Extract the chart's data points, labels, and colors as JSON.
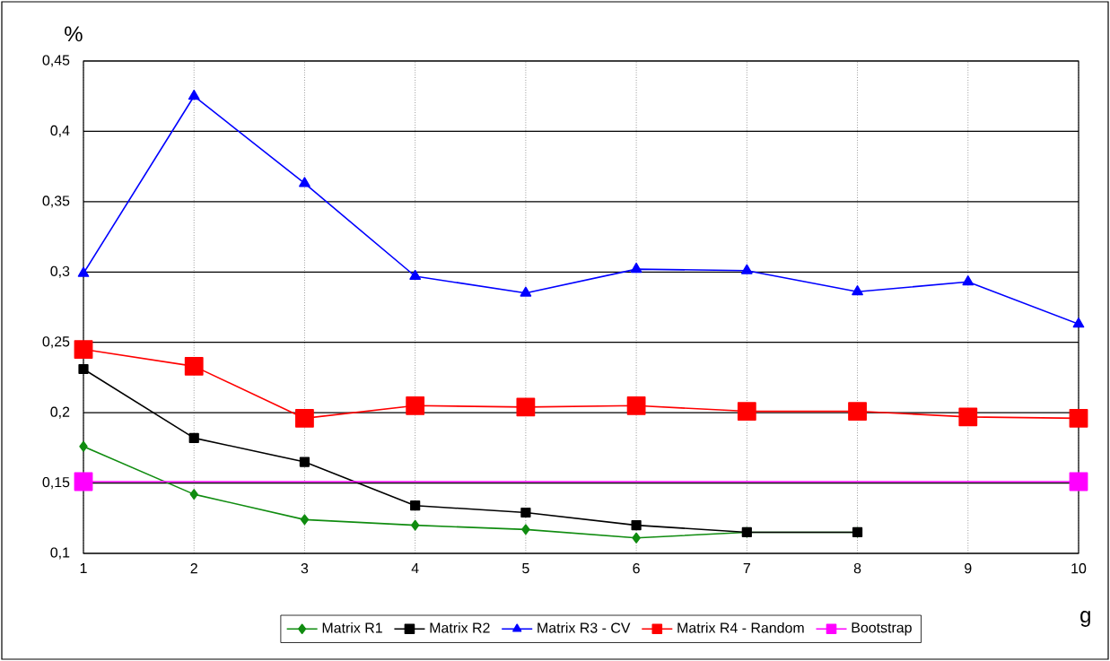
{
  "chart_data": {
    "type": "line",
    "xlabel": "g",
    "ylabel": "%",
    "x": [
      1,
      2,
      3,
      4,
      5,
      6,
      7,
      8,
      9,
      10
    ],
    "xlim": [
      1,
      10
    ],
    "xticks": [
      1,
      2,
      3,
      4,
      5,
      6,
      7,
      8,
      9,
      10
    ],
    "ylim": [
      0.1,
      0.45
    ],
    "yticks": [
      {
        "value": 0.1,
        "label": "0,1"
      },
      {
        "value": 0.15,
        "label": "0,15"
      },
      {
        "value": 0.2,
        "label": "0,2"
      },
      {
        "value": 0.25,
        "label": "0,25"
      },
      {
        "value": 0.3,
        "label": "0,3"
      },
      {
        "value": 0.35,
        "label": "0,35"
      },
      {
        "value": 0.4,
        "label": "0,4"
      },
      {
        "value": 0.45,
        "label": "0,45"
      }
    ],
    "grid": true,
    "legend": "bottom",
    "line_style": "solid",
    "series": [
      {
        "name": "Matrix R1",
        "color": "#108c10",
        "marker": "diamond",
        "x": [
          1,
          2,
          3,
          4,
          5,
          6,
          7,
          8
        ],
        "values": [
          0.176,
          0.142,
          0.124,
          0.12,
          0.117,
          0.111,
          0.115,
          0.115
        ]
      },
      {
        "name": "Matrix R2",
        "color": "#000000",
        "marker": "square",
        "x": [
          1,
          2,
          3,
          4,
          5,
          6,
          7,
          8
        ],
        "values": [
          0.231,
          0.182,
          0.165,
          0.134,
          0.129,
          0.12,
          0.115,
          0.115
        ]
      },
      {
        "name": "Matrix R3 - CV",
        "color": "#0000ff",
        "marker": "triangle",
        "values": [
          0.299,
          0.425,
          0.363,
          0.297,
          0.285,
          0.302,
          0.301,
          0.286,
          0.293,
          0.263
        ]
      },
      {
        "name": "Matrix R4 - Random",
        "color": "#ff0000",
        "marker": "square",
        "values": [
          0.245,
          0.233,
          0.196,
          0.205,
          0.204,
          0.205,
          0.201,
          0.201,
          0.197,
          0.196
        ]
      },
      {
        "name": "Bootstrap",
        "color": "#ff00ff",
        "marker": "square",
        "x": [
          1,
          10
        ],
        "values": [
          0.151,
          0.151
        ]
      }
    ]
  }
}
